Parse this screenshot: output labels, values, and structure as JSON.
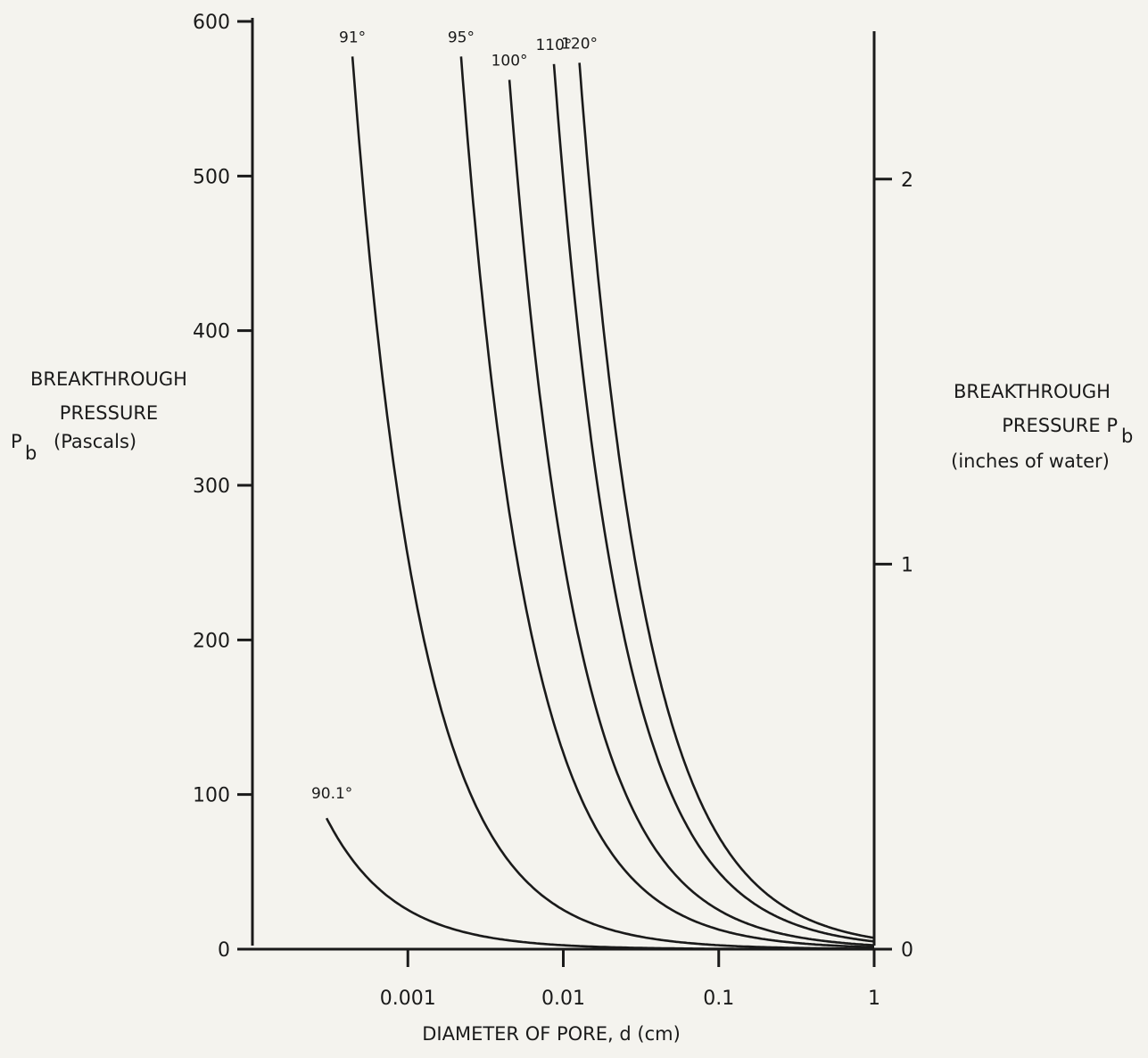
{
  "chart_data": {
    "type": "line",
    "title": "",
    "xlabel": "DIAMETER OF PORE, d (cm)",
    "x_scale": "log",
    "xlim": [
      0.0001,
      1
    ],
    "x_ticks": [
      {
        "value": 0.001,
        "label": "0.001"
      },
      {
        "value": 0.01,
        "label": "0.01"
      },
      {
        "value": 0.1,
        "label": "0.1"
      },
      {
        "value": 1,
        "label": "1"
      }
    ],
    "ylabel_left": {
      "line1": "BREAKTHROUGH",
      "line2": "PRESSURE",
      "sym": "P",
      "sub": "b",
      "unit": "(Pascals)"
    },
    "ylim": [
      0,
      600
    ],
    "y_ticks": [
      {
        "value": 0,
        "label": "0"
      },
      {
        "value": 100,
        "label": "100"
      },
      {
        "value": 200,
        "label": "200"
      },
      {
        "value": 300,
        "label": "300"
      },
      {
        "value": 400,
        "label": "400"
      },
      {
        "value": 500,
        "label": "500"
      },
      {
        "value": 600,
        "label": "600"
      }
    ],
    "ylabel_right": {
      "line1": "BREAKTHROUGH",
      "line2": "PRESSURE P",
      "sub": "b",
      "line3": "(inches of water)"
    },
    "y2_ticks": [
      {
        "value": 0,
        "label": "0"
      },
      {
        "value": 1,
        "label": "1"
      },
      {
        "value": 2,
        "label": "2"
      }
    ],
    "y2_pascals_per_unit": 249,
    "series": [
      {
        "label": "90.1°",
        "k": 0.0254,
        "x_start": 0.0003
      },
      {
        "label": "91°",
        "k": 0.254,
        "x_start": 0.00044
      },
      {
        "label": "95°",
        "k": 1.27,
        "x_start": 0.0022
      },
      {
        "label": "100°",
        "k": 2.53,
        "x_start": 0.0045
      },
      {
        "label": "110°",
        "k": 4.98,
        "x_start": 0.0087
      },
      {
        "label": "120°",
        "k": 7.28,
        "x_start": 0.0127
      }
    ]
  }
}
